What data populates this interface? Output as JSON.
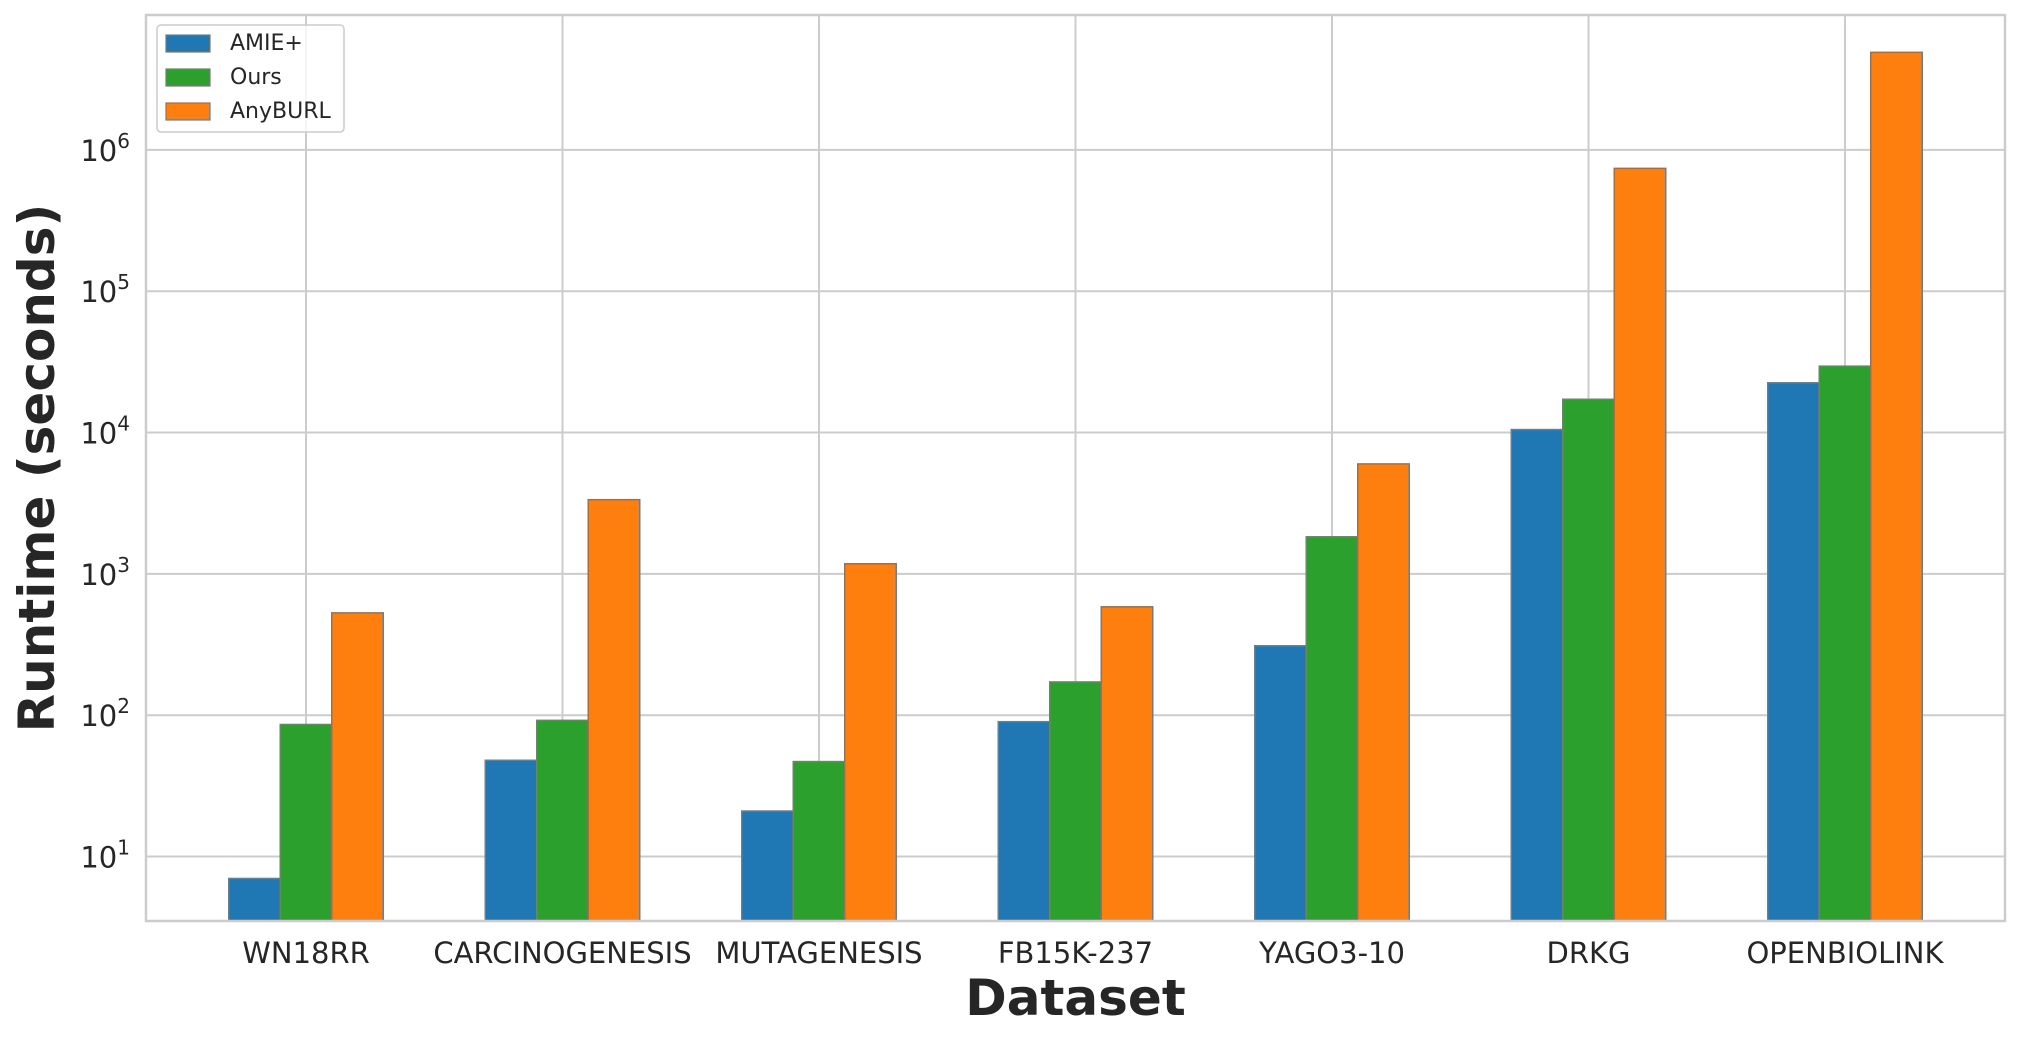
{
  "chart_data": {
    "type": "bar",
    "title": "",
    "xlabel": "Dataset",
    "ylabel": "Runtime (seconds)",
    "yscale": "log",
    "ylim": [
      3.5,
      9000000
    ],
    "grid": true,
    "legend_position": "top-left",
    "categories": [
      "WN18RR",
      "CARCINOGENESIS",
      "MUTAGENESIS",
      "FB15K-237",
      "YAGO3-10",
      "DRKG",
      "OPENBIOLINK"
    ],
    "series": [
      {
        "name": "AMIE+",
        "color": "#1f77b4",
        "values": [
          7,
          48,
          21,
          90,
          310,
          10500,
          22500
        ]
      },
      {
        "name": "Ours",
        "color": "#2ca02c",
        "values": [
          86,
          92,
          47,
          172,
          1830,
          17200,
          29500
        ]
      },
      {
        "name": "AnyBURL",
        "color": "#ff7f0e",
        "values": [
          530,
          3350,
          1180,
          585,
          6000,
          740000,
          4900000
        ]
      }
    ],
    "yticks": [
      {
        "value": 10,
        "base": "10",
        "exp": "1"
      },
      {
        "value": 100,
        "base": "10",
        "exp": "2"
      },
      {
        "value": 1000,
        "base": "10",
        "exp": "3"
      },
      {
        "value": 10000,
        "base": "10",
        "exp": "4"
      },
      {
        "value": 100000,
        "base": "10",
        "exp": "5"
      },
      {
        "value": 1000000,
        "base": "10",
        "exp": "6"
      }
    ]
  }
}
